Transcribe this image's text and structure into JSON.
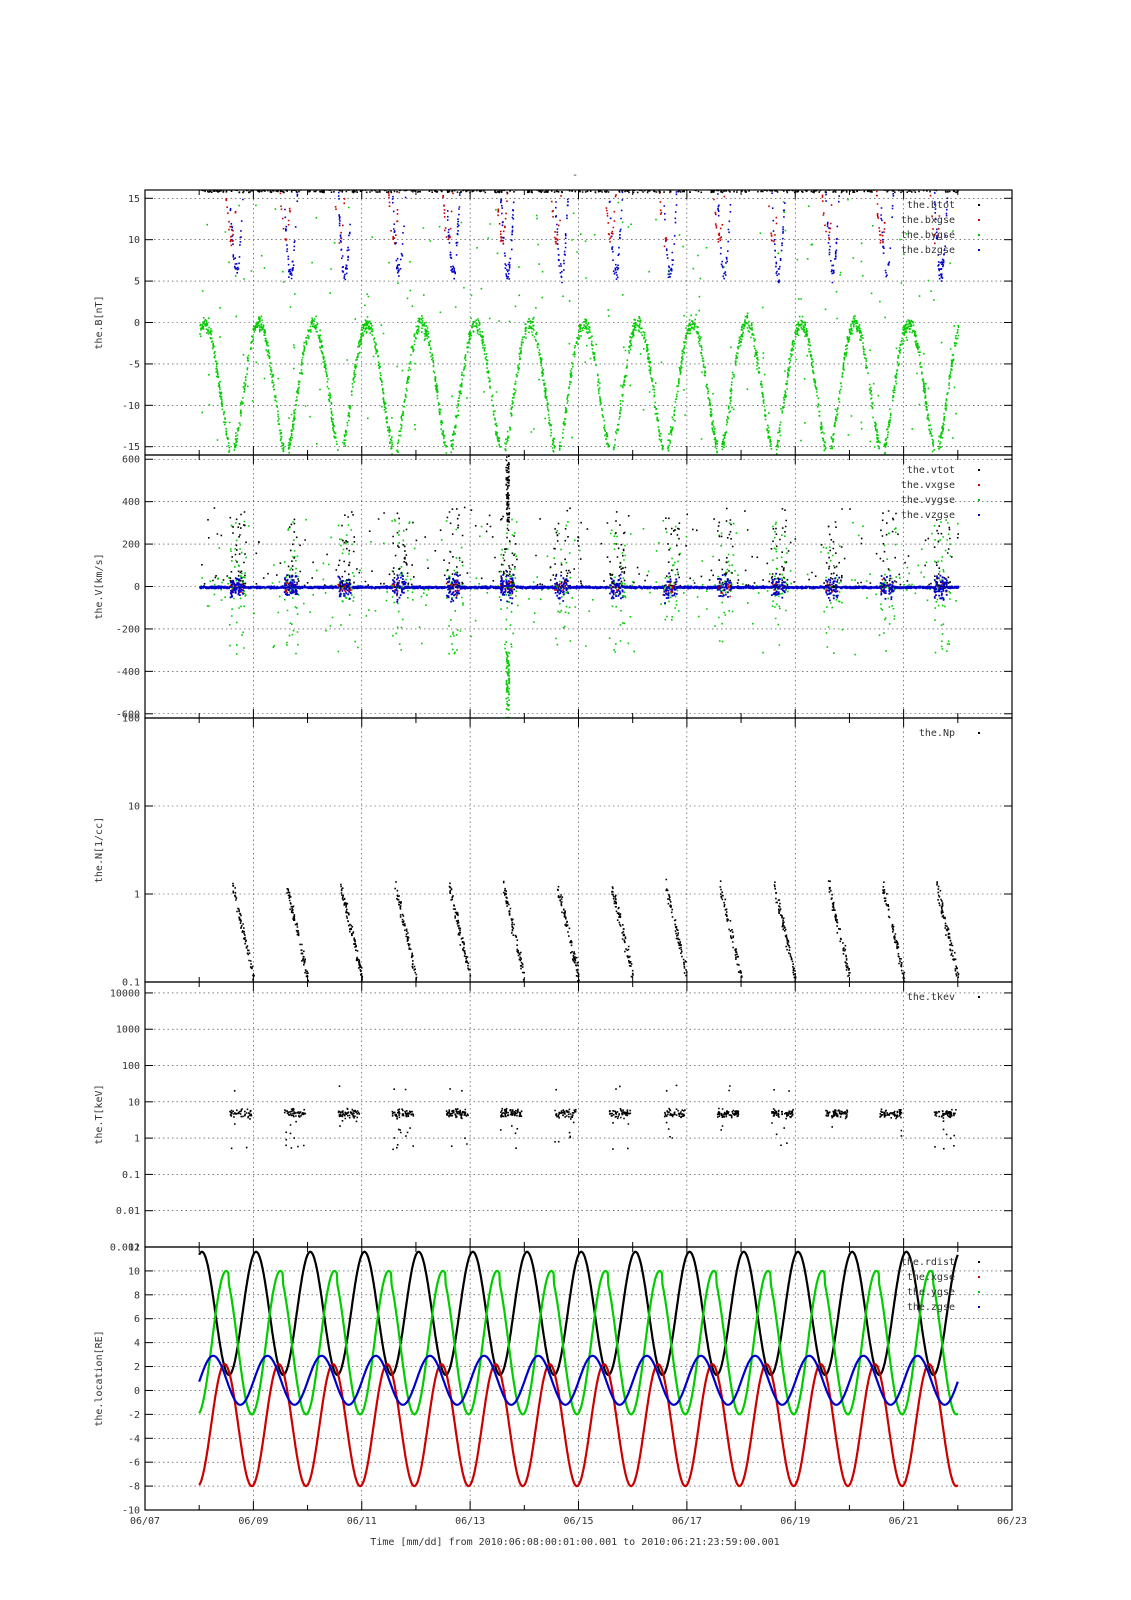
{
  "title": "-",
  "colors": {
    "black": "#000000",
    "red": "#cc0000",
    "green": "#00cc00",
    "blue": "#0000cc"
  },
  "x_axis": {
    "label": "Time [mm/dd]  from 2010:06:08:00:01:00.001  to  2010:06:21:23:59:00.001",
    "range_days": [
      7,
      23
    ],
    "ticks": [
      7,
      9,
      11,
      13,
      15,
      17,
      19,
      21,
      23
    ],
    "tick_labels": [
      "06/07",
      "06/09",
      "06/11",
      "06/13",
      "06/15",
      "06/17",
      "06/19",
      "06/21",
      "06/23"
    ],
    "data_start_day": 8.0,
    "data_end_day": 22.0
  },
  "chart_data": [
    {
      "type": "scatter",
      "ylabel": "the.B[nT]",
      "ylim": [
        -16,
        16
      ],
      "yscale": "linear",
      "yticks": [
        -15,
        -10,
        -5,
        0,
        5,
        10,
        15
      ],
      "ytick_labels": [
        "-15",
        "-10",
        "-5",
        "0",
        "5",
        "10",
        "15"
      ],
      "legend_position": "top-right",
      "series": [
        {
          "name": "the.btot",
          "color": "#000000",
          "style": "near-top, mostly clipped"
        },
        {
          "name": "the.bxgse",
          "color": "#cc0000",
          "style": "dips from clipped top to ~8-12 nT around perigee"
        },
        {
          "name": "the.bygse",
          "color": "#00cc00",
          "style": "cusp-shaped arcs between -15 and +2 nT, one per orbit, max ~0 nT"
        },
        {
          "name": "the.bzgse",
          "color": "#0000cc",
          "style": "dips from clipped top to ~3-10 nT around perigee"
        }
      ]
    },
    {
      "type": "scatter",
      "ylabel": "the.V[km/s]",
      "ylim": [
        -620,
        620
      ],
      "yscale": "linear",
      "yticks": [
        -600,
        -400,
        -200,
        0,
        200,
        400,
        600
      ],
      "ytick_labels": [
        "-600",
        "-400",
        "-200",
        "0",
        "200",
        "400",
        "600"
      ],
      "legend_position": "top-right",
      "series": [
        {
          "name": "the.vtot",
          "color": "#000000",
          "style": "spikes up to ~400 km/s, one near 06/13 above 600"
        },
        {
          "name": "the.vxgse",
          "color": "#cc0000",
          "style": "near zero"
        },
        {
          "name": "the.vygse",
          "color": "#00cc00",
          "style": "spikes to about ±300 km/s"
        },
        {
          "name": "the.vzgse",
          "color": "#0000cc",
          "style": "near zero, dense band"
        }
      ]
    },
    {
      "type": "scatter",
      "ylabel": "the.N[1/cc]",
      "ylim": [
        0.1,
        100
      ],
      "yscale": "log",
      "yticks": [
        0.1,
        1,
        10,
        100
      ],
      "ytick_labels": [
        "0.1",
        "1",
        "10",
        "100"
      ],
      "legend_position": "top-right",
      "series": [
        {
          "name": "the.Np",
          "color": "#000000",
          "style": "streaks between 0.1 and 1.4 /cc"
        }
      ]
    },
    {
      "type": "scatter",
      "ylabel": "the.T[keV]",
      "ylim": [
        0.001,
        20000
      ],
      "yscale": "log",
      "yticks": [
        0.001,
        0.01,
        0.1,
        1,
        10,
        100,
        1000,
        10000
      ],
      "ytick_labels": [
        "0.001",
        "0.01",
        "0.1",
        "1",
        "10",
        "100",
        "1000",
        "10000"
      ],
      "legend_position": "top-right",
      "series": [
        {
          "name": "the.tkev",
          "color": "#000000",
          "style": "clusters around 3-8 keV, dips to ~0.3 keV"
        }
      ]
    },
    {
      "type": "line",
      "ylabel": "the.location[RE]",
      "ylim": [
        -10,
        12
      ],
      "yscale": "linear",
      "yticks": [
        -10,
        -8,
        -6,
        -4,
        -2,
        0,
        2,
        4,
        6,
        8,
        10,
        12
      ],
      "ytick_labels": [
        "-10",
        "-8",
        "-6",
        "-4",
        "-2",
        "0",
        "2",
        "4",
        "6",
        "8",
        "10",
        "12"
      ],
      "legend_position": "top-right",
      "orbit_period_days": 1.0,
      "series": [
        {
          "name": "the.rdist",
          "color": "#000000",
          "max": 11.6,
          "min": 1.3
        },
        {
          "name": "the.xgse",
          "color": "#cc0000",
          "max": 2.2,
          "min": -8.0
        },
        {
          "name": "the.ygse",
          "color": "#00cc00",
          "max": 10.0,
          "min": -2.0
        },
        {
          "name": "the.zgse",
          "color": "#0000cc",
          "max": 2.9,
          "min": -1.2
        }
      ]
    }
  ]
}
